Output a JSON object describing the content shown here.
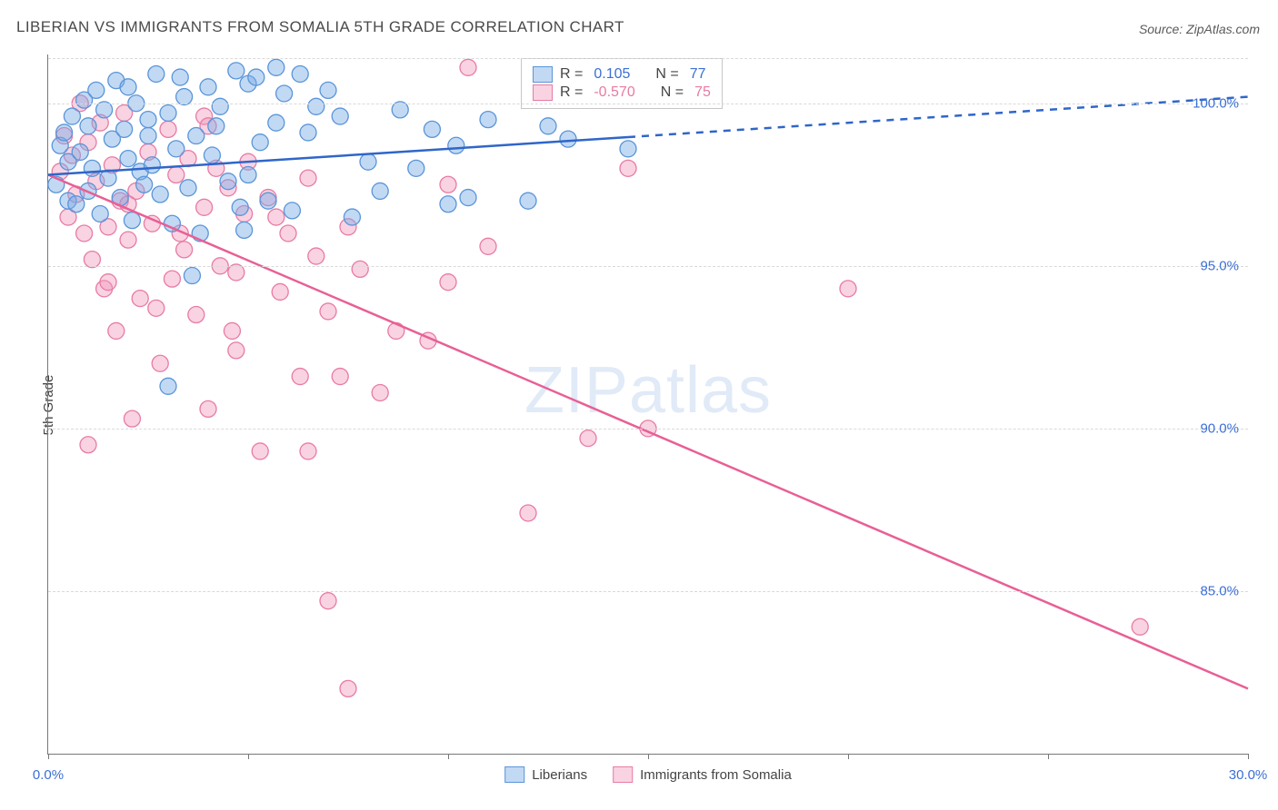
{
  "title": "LIBERIAN VS IMMIGRANTS FROM SOMALIA 5TH GRADE CORRELATION CHART",
  "source": "Source: ZipAtlas.com",
  "watermark": {
    "zip": "ZIP",
    "atlas": "atlas"
  },
  "axes": {
    "ylabel": "5th Grade",
    "xlim": [
      0,
      30
    ],
    "ylim": [
      80,
      101.5
    ],
    "xticks": [
      0,
      5,
      10,
      15,
      20,
      25,
      30
    ],
    "xtick_labels_shown": {
      "0": "0.0%",
      "30": "30.0%"
    },
    "yticks": [
      85,
      90,
      95,
      100
    ],
    "ytick_labels": [
      "85.0%",
      "90.0%",
      "95.0%",
      "100.0%"
    ],
    "grid_color": "#d9d9d9",
    "axis_color": "#777777",
    "tick_label_color": "#3b6fd6",
    "tick_fontsize": 15,
    "axis_label_fontsize": 15
  },
  "series": {
    "liberians": {
      "label": "Liberians",
      "color_fill": "rgba(120,170,230,0.45)",
      "color_stroke": "#5a95d8",
      "line_color": "#2f66c9",
      "line_width": 2.5,
      "marker_radius": 9,
      "R": "0.105",
      "N": "77",
      "trend": {
        "x1": 0,
        "y1": 97.8,
        "x2": 30,
        "y2": 100.2,
        "solid_until_x": 14.5
      },
      "points": [
        [
          0.2,
          97.5
        ],
        [
          0.3,
          98.7
        ],
        [
          0.4,
          99.1
        ],
        [
          0.5,
          97.0
        ],
        [
          0.5,
          98.2
        ],
        [
          0.6,
          99.6
        ],
        [
          0.7,
          96.9
        ],
        [
          0.8,
          98.5
        ],
        [
          0.9,
          100.1
        ],
        [
          1.0,
          97.3
        ],
        [
          1.0,
          99.3
        ],
        [
          1.1,
          98.0
        ],
        [
          1.2,
          100.4
        ],
        [
          1.3,
          96.6
        ],
        [
          1.4,
          99.8
        ],
        [
          1.5,
          97.7
        ],
        [
          1.6,
          98.9
        ],
        [
          1.7,
          100.7
        ],
        [
          1.8,
          97.1
        ],
        [
          1.9,
          99.2
        ],
        [
          2.0,
          98.3
        ],
        [
          2.1,
          96.4
        ],
        [
          2.2,
          100.0
        ],
        [
          2.3,
          97.9
        ],
        [
          2.5,
          99.5
        ],
        [
          2.6,
          98.1
        ],
        [
          2.7,
          100.9
        ],
        [
          2.8,
          97.2
        ],
        [
          3.0,
          99.7
        ],
        [
          3.1,
          96.3
        ],
        [
          3.2,
          98.6
        ],
        [
          3.4,
          100.2
        ],
        [
          3.5,
          97.4
        ],
        [
          3.6,
          94.7
        ],
        [
          3.7,
          99.0
        ],
        [
          3.8,
          96.0
        ],
        [
          4.0,
          100.5
        ],
        [
          4.1,
          98.4
        ],
        [
          4.3,
          99.9
        ],
        [
          4.5,
          97.6
        ],
        [
          4.7,
          101.0
        ],
        [
          4.8,
          96.8
        ],
        [
          5.0,
          100.6
        ],
        [
          5.2,
          100.8
        ],
        [
          5.3,
          98.8
        ],
        [
          5.5,
          97.0
        ],
        [
          5.7,
          101.1
        ],
        [
          5.7,
          99.4
        ],
        [
          5.9,
          100.3
        ],
        [
          6.1,
          96.7
        ],
        [
          6.3,
          100.9
        ],
        [
          6.5,
          99.1
        ],
        [
          5.0,
          97.8
        ],
        [
          7.0,
          100.4
        ],
        [
          7.3,
          99.6
        ],
        [
          7.6,
          96.5
        ],
        [
          8.0,
          98.2
        ],
        [
          8.3,
          97.3
        ],
        [
          8.8,
          99.8
        ],
        [
          9.2,
          98.0
        ],
        [
          9.6,
          99.2
        ],
        [
          10.0,
          96.9
        ],
        [
          10.2,
          98.7
        ],
        [
          10.5,
          97.1
        ],
        [
          11.0,
          99.5
        ],
        [
          12.0,
          97.0
        ],
        [
          12.5,
          99.3
        ],
        [
          13.0,
          98.9
        ],
        [
          14.5,
          98.6
        ],
        [
          2.0,
          100.5
        ],
        [
          2.4,
          97.5
        ],
        [
          3.3,
          100.8
        ],
        [
          4.2,
          99.3
        ],
        [
          4.9,
          96.1
        ],
        [
          6.7,
          99.9
        ],
        [
          3.0,
          91.3
        ],
        [
          2.5,
          99.0
        ]
      ]
    },
    "somalia": {
      "label": "Immigrants from Somalia",
      "color_fill": "rgba(240,150,185,0.42)",
      "color_stroke": "#e87ba4",
      "line_color": "#e85f95",
      "line_width": 2.5,
      "marker_radius": 9,
      "R": "-0.570",
      "N": "75",
      "trend": {
        "x1": 0,
        "y1": 97.8,
        "x2": 30,
        "y2": 82.0
      },
      "points": [
        [
          0.3,
          97.9
        ],
        [
          0.4,
          99.0
        ],
        [
          0.5,
          96.5
        ],
        [
          0.6,
          98.4
        ],
        [
          0.7,
          97.2
        ],
        [
          0.8,
          100.0
        ],
        [
          0.9,
          96.0
        ],
        [
          1.0,
          98.8
        ],
        [
          1.1,
          95.2
        ],
        [
          1.2,
          97.6
        ],
        [
          1.3,
          99.4
        ],
        [
          1.4,
          94.3
        ],
        [
          1.5,
          96.2
        ],
        [
          1.6,
          98.1
        ],
        [
          1.7,
          93.0
        ],
        [
          1.8,
          97.0
        ],
        [
          1.9,
          99.7
        ],
        [
          2.0,
          95.8
        ],
        [
          2.1,
          90.3
        ],
        [
          2.2,
          97.3
        ],
        [
          2.3,
          94.0
        ],
        [
          2.5,
          98.5
        ],
        [
          2.6,
          96.3
        ],
        [
          2.8,
          92.0
        ],
        [
          3.0,
          99.2
        ],
        [
          3.1,
          94.6
        ],
        [
          3.2,
          97.8
        ],
        [
          3.4,
          95.5
        ],
        [
          3.5,
          98.3
        ],
        [
          3.7,
          93.5
        ],
        [
          3.9,
          96.8
        ],
        [
          4.0,
          90.6
        ],
        [
          4.2,
          98.0
        ],
        [
          4.3,
          95.0
        ],
        [
          4.5,
          97.4
        ],
        [
          4.7,
          94.8
        ],
        [
          4.9,
          96.6
        ],
        [
          4.7,
          92.4
        ],
        [
          5.3,
          89.3
        ],
        [
          5.5,
          97.1
        ],
        [
          5.8,
          94.2
        ],
        [
          6.0,
          96.0
        ],
        [
          6.3,
          91.6
        ],
        [
          6.7,
          95.3
        ],
        [
          7.0,
          93.6
        ],
        [
          6.5,
          89.3
        ],
        [
          7.5,
          96.2
        ],
        [
          7.3,
          91.6
        ],
        [
          8.3,
          91.1
        ],
        [
          8.7,
          93.0
        ],
        [
          3.9,
          99.6
        ],
        [
          9.5,
          92.7
        ],
        [
          10.0,
          97.5
        ],
        [
          10.5,
          101.1
        ],
        [
          10.0,
          94.5
        ],
        [
          11.0,
          95.6
        ],
        [
          7.0,
          84.7
        ],
        [
          12.0,
          87.4
        ],
        [
          7.5,
          82.0
        ],
        [
          13.5,
          89.7
        ],
        [
          14.5,
          98.0
        ],
        [
          15.0,
          90.0
        ],
        [
          20.0,
          94.3
        ],
        [
          27.3,
          83.9
        ],
        [
          1.0,
          89.5
        ],
        [
          1.5,
          94.5
        ],
        [
          2.0,
          96.9
        ],
        [
          2.7,
          93.7
        ],
        [
          3.3,
          96.0
        ],
        [
          4.0,
          99.3
        ],
        [
          4.6,
          93.0
        ],
        [
          5.0,
          98.2
        ],
        [
          5.7,
          96.5
        ],
        [
          6.5,
          97.7
        ],
        [
          7.8,
          94.9
        ]
      ]
    }
  },
  "stats_legend": {
    "R_label": "R =",
    "N_label": "N ="
  },
  "background_color": "#ffffff"
}
